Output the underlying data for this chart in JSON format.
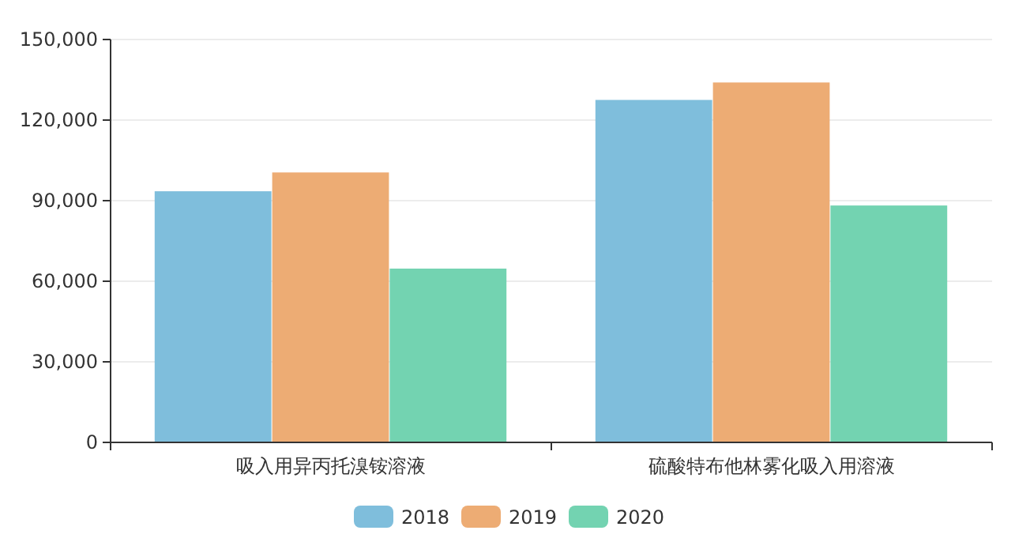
{
  "chart_data": {
    "type": "bar",
    "categories": [
      "吸入用异丙托溴铵溶液",
      "硫酸特布他林雾化吸入用溶液"
    ],
    "series": [
      {
        "name": "2018",
        "color": "#7fbedc",
        "values": [
          93500,
          127500
        ]
      },
      {
        "name": "2019",
        "color": "#edac74",
        "values": [
          100500,
          134000
        ]
      },
      {
        "name": "2020",
        "color": "#73d3b1",
        "values": [
          64700,
          88200
        ]
      }
    ],
    "ylim": [
      0,
      150000
    ],
    "yticks": [
      {
        "value": 0,
        "label": "0"
      },
      {
        "value": 30000,
        "label": "30,000"
      },
      {
        "value": 60000,
        "label": "60,000"
      },
      {
        "value": 90000,
        "label": "90,000"
      },
      {
        "value": 120000,
        "label": "120,000"
      },
      {
        "value": 150000,
        "label": "150,000"
      }
    ],
    "grid": "y",
    "legend": "bottom"
  }
}
